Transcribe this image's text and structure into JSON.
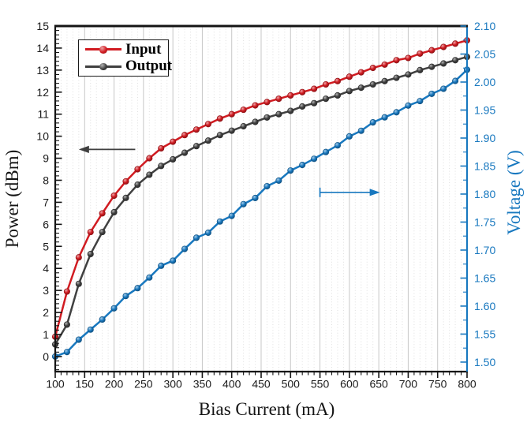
{
  "chart_data": {
    "type": "line",
    "title": "",
    "xlabel": "Bias Current (mA)",
    "ylabel_left": "Power (dBm)",
    "ylabel_right": "Voltage (V)",
    "xlim": [
      100,
      800
    ],
    "ylim_left": [
      -0.684,
      15
    ],
    "ylim_right": [
      1.483,
      2.1
    ],
    "x_tick_values": [
      100,
      150,
      200,
      250,
      300,
      350,
      400,
      450,
      500,
      550,
      600,
      650,
      700,
      750,
      800
    ],
    "x_tick_labels": [
      "100",
      "150",
      "200",
      "250",
      "300",
      "350",
      "400",
      "450",
      "500",
      "550",
      "600",
      "650",
      "700",
      "750",
      "800"
    ],
    "x_minor_step": 10,
    "y_left_tick_values": [
      0,
      1,
      2,
      3,
      4,
      5,
      6,
      7,
      8,
      9,
      10,
      11,
      12,
      13,
      14,
      15
    ],
    "y_left_tick_labels": [
      "0",
      "1",
      "2",
      "3",
      "4",
      "5",
      "6",
      "7",
      "8",
      "9",
      "10",
      "11",
      "12",
      "13",
      "14",
      "15"
    ],
    "y_left_minor_step": 0.2,
    "y_right_tick_values": [
      1.5,
      1.55,
      1.6,
      1.65,
      1.7,
      1.75,
      1.8,
      1.85,
      1.9,
      1.95,
      2.0,
      2.05,
      2.1
    ],
    "y_right_tick_labels": [
      "1.50",
      "1.55",
      "1.60",
      "1.65",
      "1.70",
      "1.75",
      "1.80",
      "1.85",
      "1.90",
      "1.95",
      "2.00",
      "2.05",
      "2.10"
    ],
    "y_right_minor_step": 0.025,
    "grid": {
      "vertical_major": true,
      "vertical_minor": true,
      "horizontal": false
    },
    "legend": {
      "position": "top-left",
      "entries": [
        "Input",
        "Output"
      ]
    },
    "x": [
      100,
      120,
      140,
      160,
      180,
      200,
      220,
      240,
      260,
      280,
      300,
      320,
      340,
      360,
      380,
      400,
      420,
      440,
      460,
      480,
      500,
      520,
      540,
      560,
      580,
      600,
      620,
      640,
      660,
      680,
      700,
      720,
      740,
      760,
      780,
      800
    ],
    "series": [
      {
        "name": "Input",
        "axis": "left",
        "color": "#d11b21",
        "values": [
          0.9,
          2.95,
          4.5,
          5.65,
          6.5,
          7.3,
          7.95,
          8.5,
          9.0,
          9.45,
          9.75,
          10.05,
          10.3,
          10.55,
          10.8,
          11.0,
          11.2,
          11.4,
          11.55,
          11.7,
          11.85,
          12.0,
          12.15,
          12.35,
          12.5,
          12.7,
          12.9,
          13.1,
          13.25,
          13.45,
          13.55,
          13.75,
          13.9,
          14.05,
          14.2,
          14.35
        ]
      },
      {
        "name": "Output",
        "axis": "left",
        "color": "#404040",
        "values": [
          0.55,
          1.45,
          3.3,
          4.65,
          5.65,
          6.55,
          7.2,
          7.8,
          8.25,
          8.65,
          8.95,
          9.25,
          9.55,
          9.8,
          10.05,
          10.25,
          10.45,
          10.65,
          10.85,
          11.0,
          11.15,
          11.35,
          11.5,
          11.7,
          11.85,
          12.05,
          12.2,
          12.35,
          12.5,
          12.65,
          12.8,
          13.0,
          13.15,
          13.3,
          13.45,
          13.6
        ]
      },
      {
        "name": "Voltage",
        "axis": "right",
        "color": "#1878bf",
        "values": [
          1.51,
          1.518,
          1.54,
          1.558,
          1.576,
          1.596,
          1.618,
          1.632,
          1.651,
          1.672,
          1.681,
          1.702,
          1.722,
          1.731,
          1.751,
          1.761,
          1.782,
          1.793,
          1.814,
          1.824,
          1.842,
          1.852,
          1.863,
          1.875,
          1.887,
          1.903,
          1.913,
          1.928,
          1.937,
          1.946,
          1.958,
          1.966,
          1.979,
          1.988,
          2.002,
          2.022
        ]
      }
    ],
    "annotations": [
      {
        "name": "left-axis-arrow",
        "direction": "left",
        "color": "#3f3f3f",
        "axis": "left",
        "x_from_mA": 236,
        "x_to_mA": 140,
        "y_power": 9.4,
        "tail_bar": false
      },
      {
        "name": "right-axis-arrow",
        "direction": "right",
        "color": "#1878bf",
        "axis": "right",
        "x_from_mA": 550,
        "x_to_mA": 652,
        "y_voltage": 1.803,
        "tail_bar": true
      }
    ],
    "axis_colors": {
      "left": "#141414",
      "bottom": "#141414",
      "top": "#141414",
      "right": "#1878bf"
    },
    "grid_colors": {
      "major": "#c7c7c7",
      "minor": "#dfdfdf"
    }
  }
}
